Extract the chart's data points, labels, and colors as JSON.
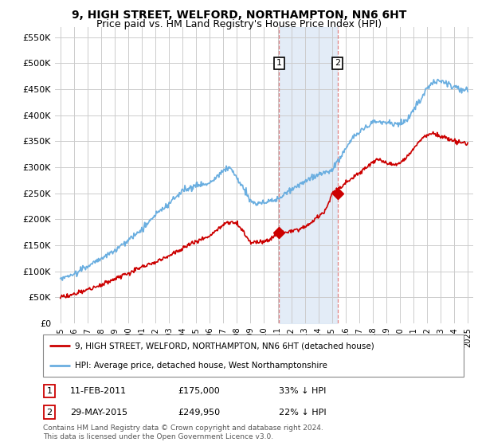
{
  "title": "9, HIGH STREET, WELFORD, NORTHAMPTON, NN6 6HT",
  "subtitle": "Price paid vs. HM Land Registry's House Price Index (HPI)",
  "title_fontsize": 10,
  "subtitle_fontsize": 9,
  "ylim": [
    0,
    570000
  ],
  "yticks": [
    0,
    50000,
    100000,
    150000,
    200000,
    250000,
    300000,
    350000,
    400000,
    450000,
    500000,
    550000
  ],
  "ytick_labels": [
    "£0",
    "£50K",
    "£100K",
    "£150K",
    "£200K",
    "£250K",
    "£300K",
    "£350K",
    "£400K",
    "£450K",
    "£500K",
    "£550K"
  ],
  "hpi_color": "#6aaee0",
  "price_color": "#cc0000",
  "marker_color": "#cc0000",
  "purchase1_x": 2011.1,
  "purchase1_y": 175000,
  "purchase2_x": 2015.4,
  "purchase2_y": 249950,
  "vline_color": "#e08080",
  "shade_color": "#dce8f5",
  "legend_house": "9, HIGH STREET, WELFORD, NORTHAMPTON, NN6 6HT (detached house)",
  "legend_hpi": "HPI: Average price, detached house, West Northamptonshire",
  "ann1_date": "11-FEB-2011",
  "ann1_price": "£175,000",
  "ann1_pct": "33% ↓ HPI",
  "ann2_date": "29-MAY-2015",
  "ann2_price": "£249,950",
  "ann2_pct": "22% ↓ HPI",
  "footnote": "Contains HM Land Registry data © Crown copyright and database right 2024.\nThis data is licensed under the Open Government Licence v3.0.",
  "bg_color": "#ffffff",
  "grid_color": "#cccccc",
  "xtick_years": [
    1995,
    1996,
    1997,
    1998,
    1999,
    2000,
    2001,
    2002,
    2003,
    2004,
    2005,
    2006,
    2007,
    2008,
    2009,
    2010,
    2011,
    2012,
    2013,
    2014,
    2015,
    2016,
    2017,
    2018,
    2019,
    2020,
    2021,
    2022,
    2023,
    2024,
    2025
  ],
  "hpi_years": [
    1995,
    1996,
    1997,
    1998,
    1999,
    2000,
    2001,
    2002,
    2003,
    2004,
    2005,
    2006,
    2007,
    2007.5,
    2008,
    2008.5,
    2009,
    2009.5,
    2010,
    2010.5,
    2011,
    2011.5,
    2012,
    2012.5,
    2013,
    2013.5,
    2014,
    2014.5,
    2015,
    2015.5,
    2016,
    2016.5,
    2017,
    2017.5,
    2018,
    2018.5,
    2019,
    2019.5,
    2020,
    2020.5,
    2021,
    2021.5,
    2022,
    2022.5,
    2023,
    2023.5,
    2024,
    2024.5,
    2025
  ],
  "hpi_vals": [
    85000,
    95000,
    110000,
    125000,
    140000,
    160000,
    180000,
    210000,
    230000,
    255000,
    265000,
    270000,
    295000,
    300000,
    280000,
    260000,
    235000,
    230000,
    232000,
    235000,
    240000,
    248000,
    258000,
    265000,
    272000,
    280000,
    285000,
    290000,
    295000,
    315000,
    335000,
    355000,
    368000,
    375000,
    385000,
    388000,
    385000,
    382000,
    385000,
    390000,
    410000,
    430000,
    450000,
    465000,
    465000,
    460000,
    455000,
    452000,
    450000
  ],
  "price_years": [
    1995,
    1996,
    1997,
    1998,
    1999,
    2000,
    2001,
    2002,
    2003,
    2004,
    2005,
    2006,
    2007,
    2007.5,
    2008,
    2008.5,
    2009,
    2009.5,
    2010,
    2010.5,
    2011,
    2011.5,
    2012,
    2012.5,
    2013,
    2013.5,
    2014,
    2014.5,
    2015,
    2015.5,
    2016,
    2016.5,
    2017,
    2017.5,
    2018,
    2018.5,
    2019,
    2019.5,
    2020,
    2020.5,
    2021,
    2021.5,
    2022,
    2022.5,
    2023,
    2023.5,
    2024,
    2024.5,
    2025
  ],
  "price_vals": [
    50000,
    55000,
    65000,
    75000,
    85000,
    98000,
    108000,
    118000,
    130000,
    145000,
    158000,
    168000,
    190000,
    195000,
    190000,
    175000,
    155000,
    155000,
    158000,
    162000,
    175000,
    175000,
    178000,
    180000,
    185000,
    195000,
    205000,
    215000,
    249950,
    260000,
    270000,
    278000,
    290000,
    300000,
    310000,
    315000,
    308000,
    305000,
    308000,
    318000,
    335000,
    352000,
    362000,
    365000,
    360000,
    355000,
    350000,
    348000,
    345000
  ]
}
